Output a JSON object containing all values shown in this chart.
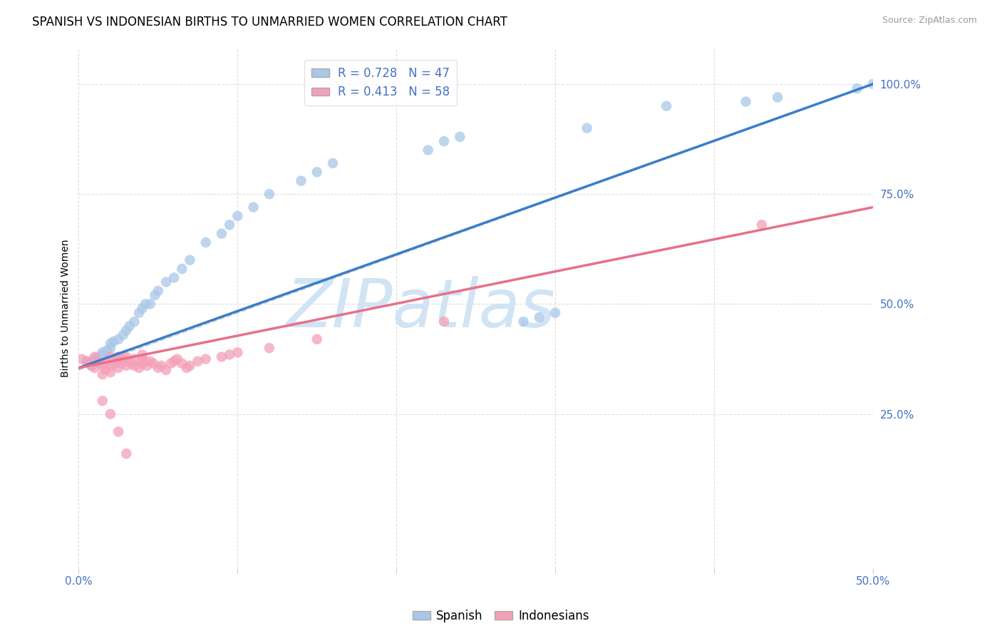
{
  "title": "SPANISH VS INDONESIAN BIRTHS TO UNMARRIED WOMEN CORRELATION CHART",
  "source": "Source: ZipAtlas.com",
  "ylabel": "Births to Unmarried Women",
  "xlim": [
    0.0,
    0.5
  ],
  "ylim": [
    -0.1,
    1.08
  ],
  "spanish_color": "#a8c8e8",
  "indonesian_color": "#f4a0b8",
  "spanish_line_color": "#3a7dc9",
  "indonesian_line_color": "#e8708a",
  "ref_line_color": "#c8c8c8",
  "watermark": "ZIPatlas",
  "watermark_color": "#d0e4f4",
  "background_color": "#ffffff",
  "title_fontsize": 12,
  "source_fontsize": 9,
  "legend_r_spanish": "R = 0.728",
  "legend_n_spanish": "N = 47",
  "legend_r_indonesian": "R = 0.413",
  "legend_n_indonesian": "N = 58",
  "spanish_x": [
    0.005,
    0.008,
    0.01,
    0.012,
    0.015,
    0.015,
    0.018,
    0.02,
    0.02,
    0.022,
    0.025,
    0.025,
    0.028,
    0.03,
    0.032,
    0.035,
    0.038,
    0.04,
    0.042,
    0.045,
    0.048,
    0.05,
    0.055,
    0.06,
    0.065,
    0.07,
    0.08,
    0.09,
    0.095,
    0.1,
    0.11,
    0.12,
    0.14,
    0.15,
    0.16,
    0.22,
    0.23,
    0.24,
    0.32,
    0.37,
    0.42,
    0.44,
    0.49,
    0.5,
    0.28,
    0.29,
    0.3
  ],
  "spanish_y": [
    0.37,
    0.36,
    0.375,
    0.38,
    0.385,
    0.39,
    0.395,
    0.4,
    0.41,
    0.415,
    0.38,
    0.42,
    0.43,
    0.44,
    0.45,
    0.46,
    0.48,
    0.49,
    0.5,
    0.5,
    0.52,
    0.53,
    0.55,
    0.56,
    0.58,
    0.6,
    0.64,
    0.66,
    0.68,
    0.7,
    0.72,
    0.75,
    0.78,
    0.8,
    0.82,
    0.85,
    0.87,
    0.88,
    0.9,
    0.95,
    0.96,
    0.97,
    0.99,
    1.0,
    0.46,
    0.47,
    0.48
  ],
  "indonesian_x": [
    0.002,
    0.005,
    0.007,
    0.008,
    0.01,
    0.01,
    0.012,
    0.013,
    0.015,
    0.015,
    0.017,
    0.018,
    0.02,
    0.02,
    0.02,
    0.022,
    0.023,
    0.025,
    0.025,
    0.025,
    0.027,
    0.028,
    0.03,
    0.03,
    0.032,
    0.033,
    0.035,
    0.035,
    0.038,
    0.04,
    0.04,
    0.04,
    0.042,
    0.043,
    0.045,
    0.047,
    0.05,
    0.052,
    0.055,
    0.058,
    0.06,
    0.062,
    0.065,
    0.068,
    0.07,
    0.075,
    0.08,
    0.09,
    0.095,
    0.1,
    0.12,
    0.15,
    0.23,
    0.43,
    0.015,
    0.02,
    0.025,
    0.03
  ],
  "indonesian_y": [
    0.375,
    0.37,
    0.365,
    0.36,
    0.355,
    0.38,
    0.37,
    0.365,
    0.34,
    0.36,
    0.35,
    0.37,
    0.345,
    0.36,
    0.38,
    0.37,
    0.365,
    0.355,
    0.37,
    0.38,
    0.365,
    0.375,
    0.36,
    0.38,
    0.37,
    0.365,
    0.36,
    0.375,
    0.355,
    0.365,
    0.375,
    0.385,
    0.37,
    0.36,
    0.37,
    0.365,
    0.355,
    0.36,
    0.35,
    0.365,
    0.37,
    0.375,
    0.365,
    0.355,
    0.36,
    0.37,
    0.375,
    0.38,
    0.385,
    0.39,
    0.4,
    0.42,
    0.46,
    0.68,
    0.28,
    0.25,
    0.21,
    0.16
  ]
}
